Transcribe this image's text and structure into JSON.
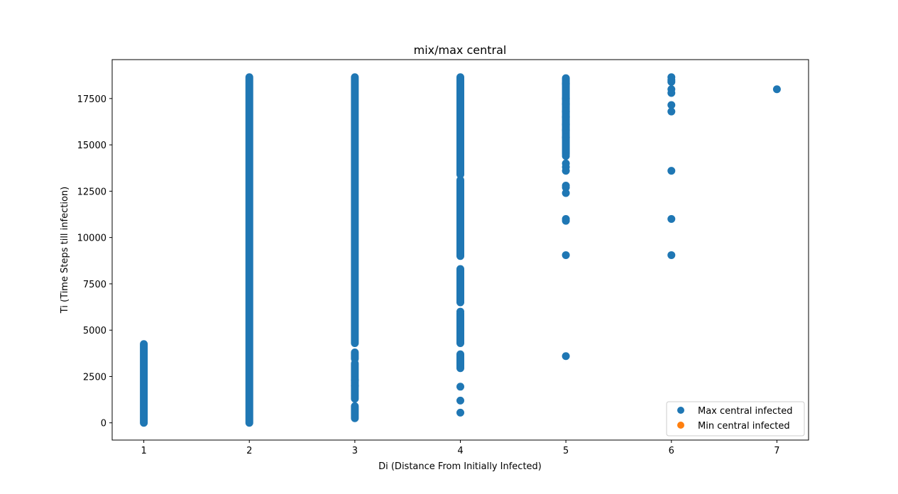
{
  "chart_data": {
    "type": "scatter",
    "title": "mix/max central",
    "xlabel": "Di (Distance From Initially Infected)",
    "ylabel": "Ti (Time Steps till infection)",
    "xlim": [
      0.7,
      7.3
    ],
    "ylim": [
      -930,
      19600
    ],
    "xticks": [
      1,
      2,
      3,
      4,
      5,
      6,
      7
    ],
    "yticks": [
      0,
      2500,
      5000,
      7500,
      10000,
      12500,
      15000,
      17500
    ],
    "grid": false,
    "legend_position": "lower-right",
    "series": [
      {
        "name": "Max central infected",
        "color": "#1f77b4",
        "columns": [
          {
            "x": 1,
            "ranges": [
              [
                0,
                4250
              ]
            ],
            "points": []
          },
          {
            "x": 2,
            "ranges": [
              [
                0,
                18650
              ]
            ],
            "points": []
          },
          {
            "x": 3,
            "ranges": [
              [
                4300,
                18650
              ],
              [
                3450,
                3800
              ],
              [
                1300,
                3200
              ],
              [
                250,
                900
              ]
            ],
            "points": [
              2300,
              2000
            ]
          },
          {
            "x": 4,
            "ranges": [
              [
                13400,
                18650
              ],
              [
                9000,
                13100
              ],
              [
                6500,
                8300
              ],
              [
                4300,
                5900
              ],
              [
                2950,
                3700
              ]
            ],
            "points": [
              6000,
              5300,
              5000,
              3250,
              1950,
              1200,
              550
            ]
          },
          {
            "x": 5,
            "ranges": [
              [
                14500,
                18600
              ]
            ],
            "points": [
              18300,
              17500,
              17200,
              16800,
              16500,
              16100,
              15800,
              15400,
              14400,
              14000,
              13800,
              13600,
              12800,
              12700,
              12400,
              11000,
              10900,
              9050,
              3600
            ]
          },
          {
            "x": 6,
            "ranges": [],
            "points": [
              18650,
              18500,
              18400,
              18000,
              17800,
              17150,
              16800,
              13600,
              11000,
              9050
            ]
          },
          {
            "x": 7,
            "ranges": [],
            "points": [
              18000
            ]
          }
        ]
      },
      {
        "name": "Min central infected",
        "color": "#ff7f0e",
        "columns": []
      }
    ]
  }
}
